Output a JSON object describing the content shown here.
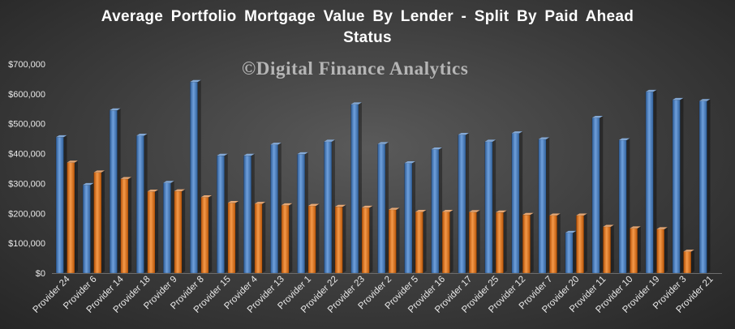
{
  "chart_data": {
    "type": "bar",
    "title": "Average Portfolio Mortgage Value By Lender - Split By Paid Ahead",
    "title_line2": "Status",
    "watermark": "©Digital Finance Analytics",
    "categories": [
      "Provider 24",
      "Provider 6",
      "Provider 14",
      "Provider 18",
      "Provider 9",
      "Provider 8",
      "Provider 15",
      "Provider 4",
      "Provider 13",
      "Provider 1",
      "Provider 22",
      "Provider 23",
      "Provider 2",
      "Provider 5",
      "Provider 16",
      "Provider 17",
      "Provider 25",
      "Provider 12",
      "Provider 7",
      "Provider 20",
      "Provider 11",
      "Provider 10",
      "Provider 19",
      "Provider 3",
      "Provider 21"
    ],
    "series": [
      {
        "color": "#4f81bd",
        "values": [
          455000,
          295000,
          545000,
          460000,
          302000,
          640000,
          393000,
          393000,
          430000,
          398000,
          440000,
          565000,
          432000,
          368000,
          414000,
          463000,
          440000,
          468000,
          448000,
          135000,
          520000,
          445000,
          607000,
          580000,
          576000
        ]
      },
      {
        "color": "#e46c0a",
        "values": [
          370000,
          337000,
          315000,
          273000,
          274000,
          254000,
          235000,
          232000,
          227000,
          225000,
          222000,
          219000,
          212000,
          205000,
          205000,
          204000,
          203000,
          195000,
          193000,
          193000,
          155000,
          150000,
          147000,
          72000,
          null
        ]
      }
    ],
    "ylim": [
      0,
      700000
    ],
    "yticks": [
      0,
      100000,
      200000,
      300000,
      400000,
      500000,
      600000,
      700000
    ],
    "ytick_labels": [
      "$0",
      "$100,000",
      "$200,000",
      "$300,000",
      "$400,000",
      "$500,000",
      "$600,000",
      "$700,000"
    ],
    "xlabel": "",
    "ylabel": "",
    "grid": false,
    "legend": "none"
  }
}
